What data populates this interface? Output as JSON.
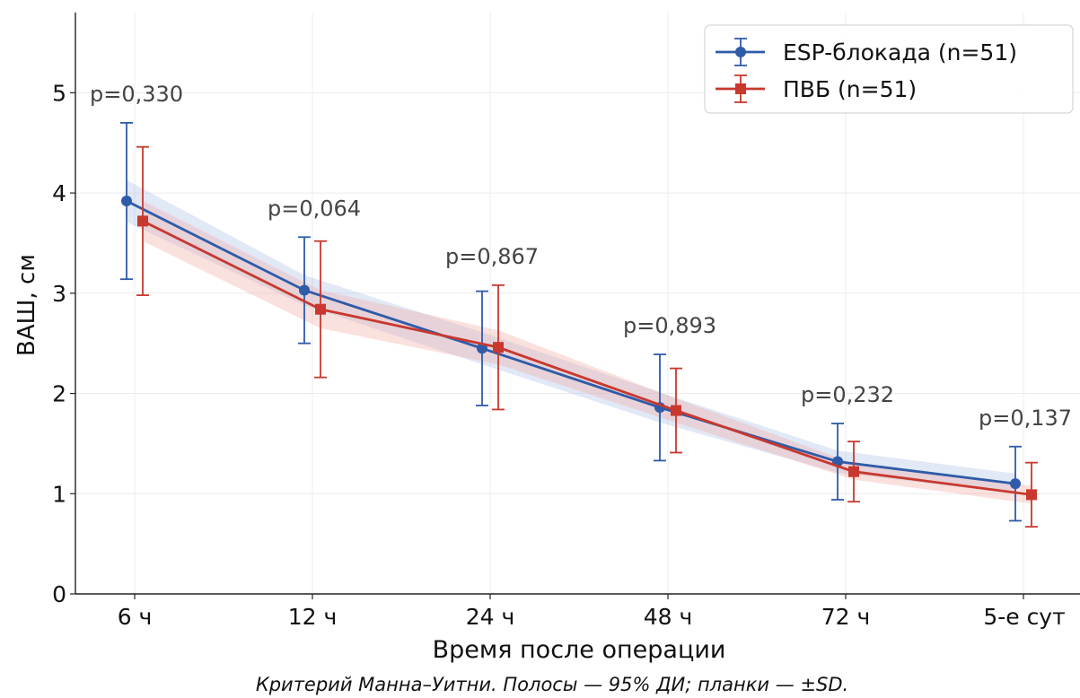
{
  "chart_data": {
    "type": "line",
    "categories": [
      "6 ч",
      "12 ч",
      "24 ч",
      "48 ч",
      "72 ч",
      "5-е сут"
    ],
    "xlabel": "Время после операции",
    "ylabel": "ВАШ, см",
    "ylim": [
      0,
      5.8
    ],
    "yticks": [
      0,
      1,
      2,
      3,
      4,
      5
    ],
    "grid": true,
    "legend_position": "top-right",
    "footnote": "Критерий Манна–Уитни. Полосы — 95% ДИ; планки — ±SD.",
    "p_values": [
      "p=0,330",
      "p=0,064",
      "p=0,867",
      "p=0,893",
      "p=0,232",
      "p=0,137"
    ],
    "series": [
      {
        "name": "ESP-блокада (n=51)",
        "color": "#2f5ba8",
        "marker": "circle",
        "values": [
          3.92,
          3.03,
          2.45,
          1.86,
          1.32,
          1.1
        ],
        "sd": [
          0.78,
          0.53,
          0.57,
          0.53,
          0.38,
          0.37
        ],
        "ci95": [
          0.21,
          0.15,
          0.16,
          0.15,
          0.11,
          0.1
        ]
      },
      {
        "name": "ПВБ (n=51)",
        "color": "#c8382e",
        "marker": "square",
        "values": [
          3.72,
          2.84,
          2.46,
          1.83,
          1.22,
          0.99
        ],
        "sd": [
          0.74,
          0.68,
          0.62,
          0.42,
          0.3,
          0.32
        ],
        "ci95": [
          0.2,
          0.19,
          0.17,
          0.12,
          0.08,
          0.09
        ]
      }
    ]
  }
}
